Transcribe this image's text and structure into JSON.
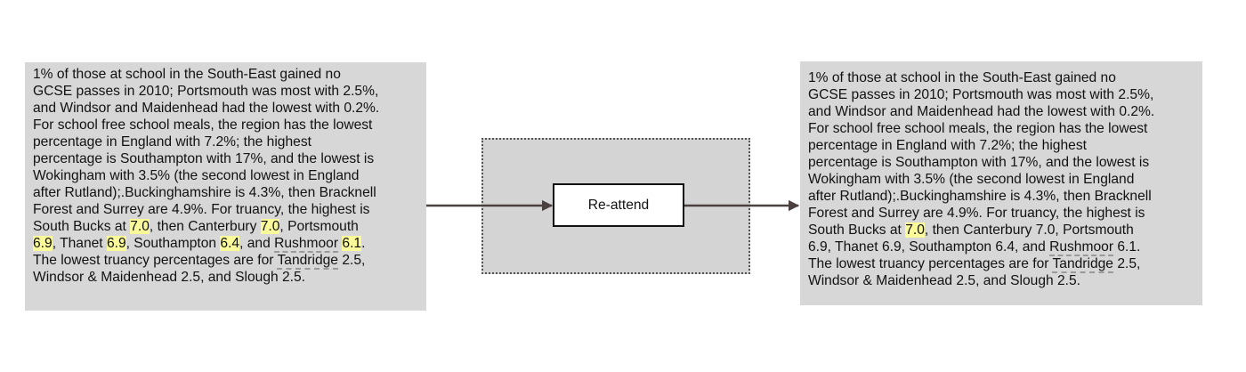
{
  "process_label": "Re-attend",
  "input_text": {
    "lines": [
      [
        {
          "t": "1% of those at school in the South-East gained no"
        }
      ],
      [
        {
          "t": "GCSE passes in 2010; Portsmouth was most with 2.5%,"
        }
      ],
      [
        {
          "t": "and Windsor and Maidenhead had the lowest with 0.2%."
        }
      ],
      [
        {
          "t": "For school free school meals, the region has the lowest"
        }
      ],
      [
        {
          "t": "percentage in England with 7.2%; the highest"
        }
      ],
      [
        {
          "t": "percentage is Southampton with 17%, and the lowest is"
        }
      ],
      [
        {
          "t": "Wokingham with 3.5% (the second lowest in England"
        }
      ],
      [
        {
          "t": "after Rutland);.Buckinghamshire is 4.3%, then Bracknell"
        }
      ],
      [
        {
          "t": "Forest and Surrey are 4.9%. For truancy, the highest is"
        }
      ],
      [
        {
          "t": "South Bucks at "
        },
        {
          "t": "7.0",
          "s": "hl"
        },
        {
          "t": ", then Canterbury "
        },
        {
          "t": "7.0",
          "s": "hl"
        },
        {
          "t": ", Portsmouth"
        }
      ],
      [
        {
          "t": "6.9",
          "s": "hl"
        },
        {
          "t": ", Thanet "
        },
        {
          "t": "6.9",
          "s": "hl"
        },
        {
          "t": ", Southampton "
        },
        {
          "t": "6.4",
          "s": "hl"
        },
        {
          "t": ", and "
        },
        {
          "t": "Rushmoor",
          "s": "ul"
        },
        {
          "t": " "
        },
        {
          "t": "6.1",
          "s": "hl"
        },
        {
          "t": "."
        }
      ],
      [
        {
          "t": "The lowest truancy percentages are for "
        },
        {
          "t": "Tandridge",
          "s": "ul"
        },
        {
          "t": " 2.5,"
        }
      ],
      [
        {
          "t": "Windsor & Maidenhead 2.5, and Slough 2.5."
        }
      ]
    ]
  },
  "output_text": {
    "lines": [
      [
        {
          "t": "1% of those at school in the South-East gained no"
        }
      ],
      [
        {
          "t": "GCSE passes in 2010; Portsmouth was most with 2.5%,"
        }
      ],
      [
        {
          "t": "and Windsor and Maidenhead had the lowest with 0.2%."
        }
      ],
      [
        {
          "t": "For school free school meals, the region has the lowest"
        }
      ],
      [
        {
          "t": "percentage in England with 7.2%; the highest"
        }
      ],
      [
        {
          "t": "percentage is Southampton with 17%, and the lowest is"
        }
      ],
      [
        {
          "t": "Wokingham with 3.5% (the second lowest in England"
        }
      ],
      [
        {
          "t": "after Rutland);.Buckinghamshire is 4.3%, then Bracknell"
        }
      ],
      [
        {
          "t": "Forest and Surrey are 4.9%. For truancy, the highest is"
        }
      ],
      [
        {
          "t": "South Bucks at "
        },
        {
          "t": "7.0",
          "s": "hl"
        },
        {
          "t": ", then Canterbury 7.0, Portsmouth"
        }
      ],
      [
        {
          "t": "6.9, Thanet 6.9, Southampton 6.4, and "
        },
        {
          "t": "Rushmoor",
          "s": "ul"
        },
        {
          "t": " 6.1."
        }
      ],
      [
        {
          "t": "The lowest truancy percentages are for "
        },
        {
          "t": "Tandridge",
          "s": "ul"
        },
        {
          "t": " 2.5,"
        }
      ],
      [
        {
          "t": "Windsor & Maidenhead 2.5, and Slough 2.5."
        }
      ]
    ]
  },
  "colors": {
    "highlight": "#fafa9a",
    "box_fill": "#d7d7d7",
    "arrow": "#4a4040",
    "underline_dashed": "#9a9a9a"
  }
}
